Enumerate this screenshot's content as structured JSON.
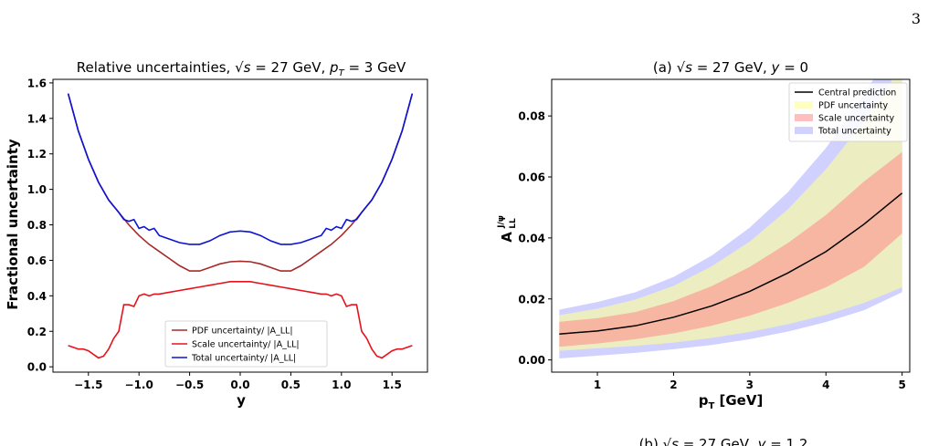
{
  "page": {
    "number": "3"
  },
  "chart_data": [
    {
      "type": "line",
      "title_parts": [
        "Relative uncertainties, ",
        "√s",
        " = 27 GeV, ",
        "p",
        "T",
        " = 3 GeV"
      ],
      "xlabel": "y",
      "ylabel": "Fractional uncertainty",
      "xlim": [
        -1.85,
        1.85
      ],
      "ylim": [
        -0.03,
        1.62
      ],
      "xticks": [
        -1.5,
        -1.0,
        -0.5,
        0.0,
        0.5,
        1.0,
        1.5
      ],
      "xtick_labels": [
        "−1.5",
        "−1.0",
        "−0.5",
        "0.0",
        "0.5",
        "1.0",
        "1.5"
      ],
      "yticks": [
        0.0,
        0.2,
        0.4,
        0.6,
        0.8,
        1.0,
        1.2,
        1.4,
        1.6
      ],
      "ytick_labels": [
        "0.0",
        "0.2",
        "0.4",
        "0.6",
        "0.8",
        "1.0",
        "1.2",
        "1.4",
        "1.6"
      ],
      "legend_position": "lower-center",
      "series": [
        {
          "name": "PDF uncertainty/ |A_LL|",
          "color": "#a52a2a",
          "x": [
            -1.7,
            -1.6,
            -1.5,
            -1.4,
            -1.3,
            -1.2,
            -1.1,
            -1.0,
            -0.9,
            -0.8,
            -0.7,
            -0.6,
            -0.5,
            -0.4,
            -0.3,
            -0.2,
            -0.1,
            0.0,
            0.1,
            0.2,
            0.3,
            0.4,
            0.5,
            0.6,
            0.7,
            0.8,
            0.9,
            1.0,
            1.1,
            1.2,
            1.3,
            1.4,
            1.5,
            1.6,
            1.7
          ],
          "y": [
            1.54,
            1.33,
            1.17,
            1.04,
            0.94,
            0.87,
            0.8,
            0.74,
            0.69,
            0.65,
            0.61,
            0.57,
            0.54,
            0.54,
            0.56,
            0.58,
            0.592,
            0.595,
            0.592,
            0.58,
            0.56,
            0.54,
            0.54,
            0.57,
            0.61,
            0.65,
            0.69,
            0.74,
            0.8,
            0.87,
            0.94,
            1.04,
            1.17,
            1.33,
            1.54
          ]
        },
        {
          "name": "Scale uncertainty/ |A_LL|",
          "color": "#e8121b",
          "x": [
            -1.7,
            -1.65,
            -1.6,
            -1.55,
            -1.5,
            -1.45,
            -1.4,
            -1.35,
            -1.3,
            -1.25,
            -1.2,
            -1.15,
            -1.1,
            -1.05,
            -1.0,
            -0.95,
            -0.9,
            -0.85,
            -0.8,
            -0.7,
            -0.6,
            -0.5,
            -0.4,
            -0.3,
            -0.2,
            -0.1,
            0.0,
            0.1,
            0.2,
            0.3,
            0.4,
            0.5,
            0.6,
            0.7,
            0.8,
            0.85,
            0.9,
            0.95,
            1.0,
            1.05,
            1.1,
            1.15,
            1.2,
            1.25,
            1.3,
            1.35,
            1.4,
            1.45,
            1.5,
            1.55,
            1.6,
            1.65,
            1.7
          ],
          "y": [
            0.12,
            0.11,
            0.1,
            0.1,
            0.09,
            0.07,
            0.05,
            0.06,
            0.1,
            0.16,
            0.2,
            0.35,
            0.35,
            0.34,
            0.4,
            0.41,
            0.4,
            0.41,
            0.41,
            0.42,
            0.43,
            0.44,
            0.45,
            0.46,
            0.47,
            0.48,
            0.48,
            0.48,
            0.47,
            0.46,
            0.45,
            0.44,
            0.43,
            0.42,
            0.41,
            0.41,
            0.4,
            0.41,
            0.4,
            0.34,
            0.35,
            0.35,
            0.2,
            0.16,
            0.1,
            0.06,
            0.05,
            0.07,
            0.09,
            0.1,
            0.1,
            0.11,
            0.12
          ]
        },
        {
          "name": "Total uncertainty/ |A_LL|",
          "color": "#0b14d6",
          "x": [
            -1.7,
            -1.6,
            -1.5,
            -1.4,
            -1.3,
            -1.2,
            -1.15,
            -1.1,
            -1.05,
            -1.0,
            -0.95,
            -0.9,
            -0.85,
            -0.8,
            -0.7,
            -0.6,
            -0.5,
            -0.4,
            -0.3,
            -0.2,
            -0.1,
            0.0,
            0.1,
            0.2,
            0.3,
            0.4,
            0.5,
            0.6,
            0.7,
            0.8,
            0.85,
            0.9,
            0.95,
            1.0,
            1.05,
            1.1,
            1.15,
            1.2,
            1.3,
            1.4,
            1.5,
            1.6,
            1.7
          ],
          "y": [
            1.54,
            1.33,
            1.17,
            1.04,
            0.94,
            0.87,
            0.83,
            0.82,
            0.83,
            0.78,
            0.79,
            0.77,
            0.78,
            0.74,
            0.72,
            0.7,
            0.69,
            0.69,
            0.71,
            0.74,
            0.76,
            0.765,
            0.76,
            0.74,
            0.71,
            0.69,
            0.69,
            0.7,
            0.72,
            0.74,
            0.78,
            0.77,
            0.79,
            0.78,
            0.83,
            0.82,
            0.83,
            0.87,
            0.94,
            1.04,
            1.17,
            1.33,
            1.54
          ]
        }
      ]
    },
    {
      "type": "area",
      "title_parts": [
        "(a) ",
        "√s",
        " = 27 GeV, ",
        "y",
        " = 0"
      ],
      "xlabel_parts": [
        "p",
        "T",
        " [GeV]"
      ],
      "ylabel_parts": [
        "A",
        "J/ψ",
        "LL"
      ],
      "xlim": [
        0.4,
        5.1
      ],
      "ylim": [
        -0.004,
        0.092
      ],
      "xticks": [
        1,
        2,
        3,
        4,
        5
      ],
      "xtick_labels": [
        "1",
        "2",
        "3",
        "4",
        "5"
      ],
      "yticks": [
        0.0,
        0.02,
        0.04,
        0.06,
        0.08
      ],
      "ytick_labels": [
        "0.00",
        "0.02",
        "0.04",
        "0.06",
        "0.08"
      ],
      "legend_position": "top-right",
      "legend": [
        "Central prediction",
        "PDF uncertainty",
        "Scale uncertainty",
        "Total uncertainty"
      ],
      "x": [
        0.5,
        1.0,
        1.5,
        2.0,
        2.5,
        3.0,
        3.5,
        4.0,
        4.5,
        5.0
      ],
      "central": {
        "color": "#000000",
        "y": [
          0.0085,
          0.0095,
          0.0112,
          0.014,
          0.0177,
          0.0225,
          0.0285,
          0.0355,
          0.0445,
          0.0547
        ]
      },
      "pdf_band": {
        "color": "#ffff99",
        "low": [
          0.003,
          0.0038,
          0.0046,
          0.0057,
          0.0072,
          0.0092,
          0.0117,
          0.0148,
          0.0187,
          0.0238
        ],
        "high": [
          0.0147,
          0.0168,
          0.0198,
          0.0243,
          0.0307,
          0.0388,
          0.0494,
          0.0625,
          0.0782,
          0.0965
        ]
      },
      "scale_band": {
        "color": "#ff7f7f",
        "low": [
          0.0043,
          0.0054,
          0.0068,
          0.0087,
          0.0112,
          0.0145,
          0.0187,
          0.0238,
          0.0305,
          0.0415
        ],
        "high": [
          0.0125,
          0.0137,
          0.0157,
          0.0193,
          0.0242,
          0.0305,
          0.0383,
          0.0475,
          0.0585,
          0.0682
        ]
      },
      "total_band": {
        "color": "#a3a3ff",
        "low": [
          0.0005,
          0.0014,
          0.0023,
          0.0035,
          0.0049,
          0.0068,
          0.0093,
          0.0124,
          0.0163,
          0.0222
        ],
        "high": [
          0.0165,
          0.019,
          0.0222,
          0.0272,
          0.0342,
          0.0434,
          0.055,
          0.0695,
          0.087,
          0.1075
        ]
      }
    }
  ],
  "caption_b_parts": [
    "(b) ",
    "√s",
    " = 27 GeV, ",
    "y",
    " = 1.2"
  ]
}
